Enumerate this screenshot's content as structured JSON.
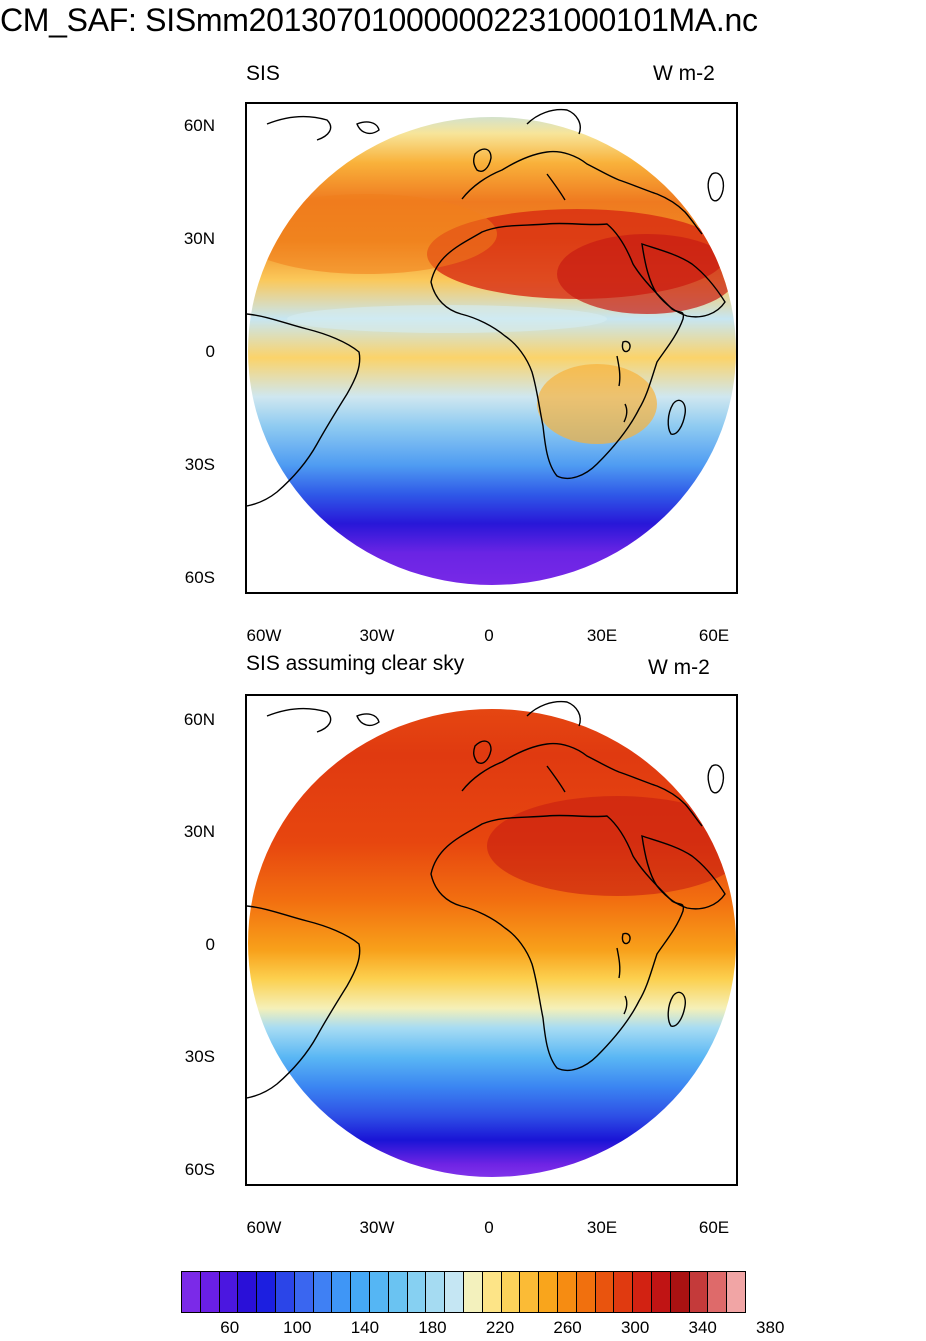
{
  "title": "CM_SAF: SISmm20130701000000223100010 1MA.nc",
  "panels": [
    {
      "title_left": "SIS",
      "title_right": "W m-2",
      "field": "cloudy"
    },
    {
      "title_left": "SIS assuming clear sky",
      "title_right": "W m-2",
      "field": "clear"
    }
  ],
  "lat_labels": [
    "60N",
    "30N",
    "0",
    "30S",
    "60S"
  ],
  "lon_labels": [
    "60W",
    "30W",
    "0",
    "30E",
    "60E"
  ],
  "colorbar": {
    "labels": [
      "60",
      "100",
      "140",
      "180",
      "220",
      "260",
      "300",
      "340",
      "380"
    ],
    "colors": [
      "#7b2ae8",
      "#6a1fe6",
      "#4b17e0",
      "#2a10d8",
      "#1c1fe0",
      "#2b45e8",
      "#3a66f0",
      "#3f80f4",
      "#3f96f6",
      "#45a8f6",
      "#55b6f4",
      "#6ac3f2",
      "#86d0f2",
      "#a5dbf2",
      "#c5e6f3",
      "#f3f1bd",
      "#fde487",
      "#fcd25a",
      "#fbbb36",
      "#f9a51c",
      "#f68c12",
      "#f1700e",
      "#e9540e",
      "#e03a10",
      "#d22212",
      "#c01414",
      "#aa1212",
      "#c43a3a",
      "#de6a6a",
      "#f1a5a5"
    ]
  }
}
